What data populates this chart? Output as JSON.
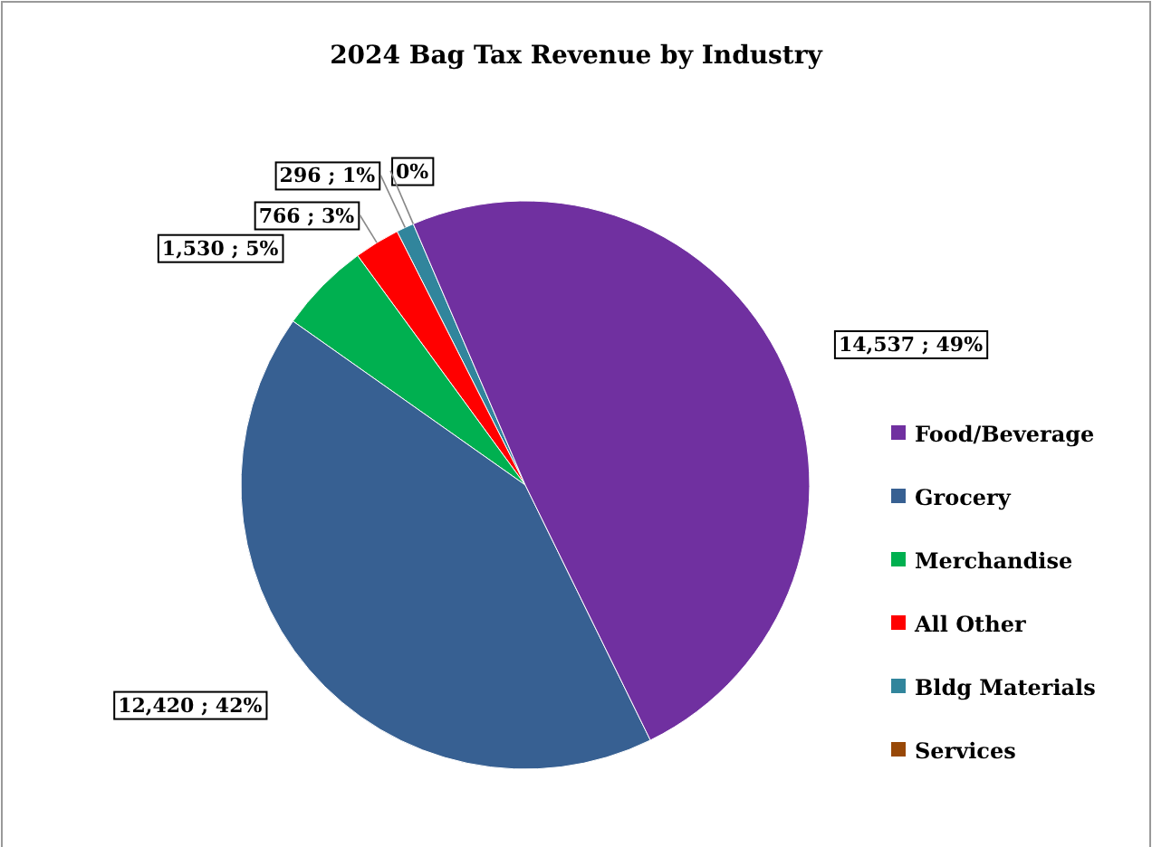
{
  "chart_data": {
    "type": "pie",
    "title": "2024 Bag Tax Revenue by Industry",
    "categories": [
      "Food/Beverage",
      "Grocery",
      "Merchandise",
      "All Other",
      "Bldg Materials",
      "Services"
    ],
    "values": [
      14537,
      12420,
      1530,
      766,
      296,
      0
    ],
    "colors": [
      "#7030a0",
      "#376092",
      "#00b050",
      "#ff0000",
      "#31859c",
      "#984807"
    ],
    "value_labels": [
      "14,537 ; 49%",
      "12,420 ; 42%",
      "1,530 ; 5%",
      "766 ; 3%",
      "296 ; 1%",
      "0%"
    ],
    "legend": "right"
  }
}
